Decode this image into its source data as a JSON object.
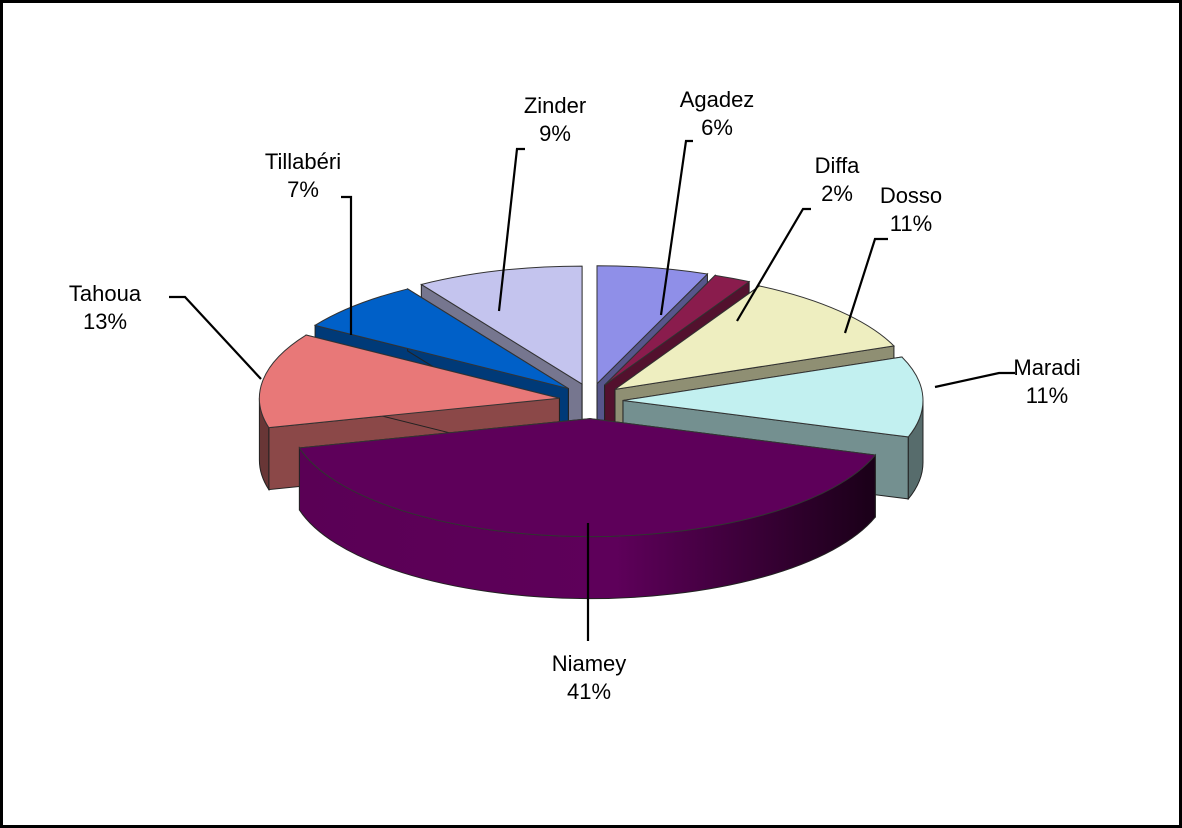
{
  "chart_data": {
    "type": "pie",
    "title": "",
    "style": "3d-exploded",
    "slices": [
      {
        "label": "Agadez",
        "percent_label": "6%",
        "value": 6,
        "color": "#8f8fe8"
      },
      {
        "label": "Diffa",
        "percent_label": "2%",
        "value": 2,
        "color": "#8a1c4d"
      },
      {
        "label": "Dosso",
        "percent_label": "11%",
        "value": 11,
        "color": "#eeeec0"
      },
      {
        "label": "Maradi",
        "percent_label": "11%",
        "value": 11,
        "color": "#c2f0f0"
      },
      {
        "label": "Niamey",
        "percent_label": "41%",
        "value": 41,
        "color": "#5e005a"
      },
      {
        "label": "Tahoua",
        "percent_label": "13%",
        "value": 13,
        "color": "#e87878"
      },
      {
        "label": "Tillabéri",
        "percent_label": "7%",
        "value": 7,
        "color": "#0060c8"
      },
      {
        "label": "Zinder",
        "percent_label": "9%",
        "value": 9,
        "color": "#c4c4ee"
      }
    ]
  }
}
